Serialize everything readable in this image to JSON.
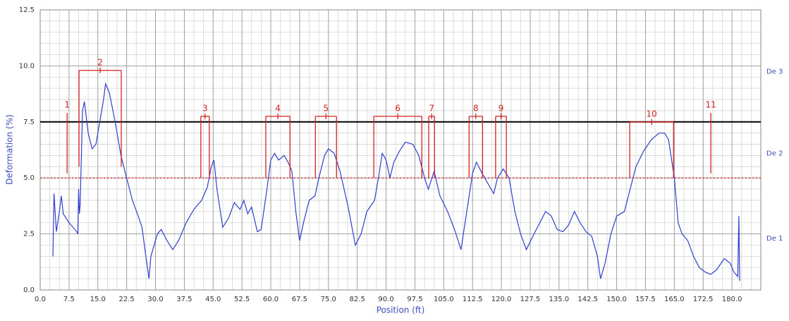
{
  "chart_data": {
    "type": "line",
    "x_label": "Position (ft)",
    "y_label": "Deformation (%)",
    "xlim": [
      0,
      187.5
    ],
    "ylim": [
      0,
      12.5
    ],
    "xticks": [
      {
        "value": 0,
        "label": "0.0"
      },
      7.5,
      {
        "value": 15,
        "label": "15.0"
      },
      22.5,
      {
        "value": 30,
        "label": "30.0"
      },
      37.5,
      {
        "value": 45,
        "label": "45.0"
      },
      52.5,
      {
        "value": 60,
        "label": "60.0"
      },
      67.5,
      {
        "value": 75,
        "label": "75.0"
      },
      82.5,
      {
        "value": 90,
        "label": "90.0"
      },
      97.5,
      {
        "value": 105,
        "label": "105.0"
      },
      112.5,
      {
        "value": 120,
        "label": "120.0"
      },
      127.5,
      {
        "value": 135,
        "label": "135.0"
      },
      142.5,
      {
        "value": 150,
        "label": "150.0"
      },
      157.5,
      {
        "value": 165,
        "label": "165.0"
      },
      172.5,
      {
        "value": 180,
        "label": "180.0"
      }
    ],
    "yticks": [
      {
        "value": 0,
        "label": "0.0"
      },
      2.5,
      {
        "value": 5,
        "label": "5.0"
      },
      7.5,
      {
        "value": 10,
        "label": "10.0"
      },
      12.5
    ],
    "grid": true,
    "minor_grid": {
      "x": 2.5,
      "y": 0.5
    },
    "color": "#2f3fcf",
    "x": [
      3.3,
      3.6,
      4.2,
      5.0,
      5.5,
      6.0,
      7.5,
      9.5,
      9.8,
      10.0,
      10.2,
      10.4,
      11.0,
      11.5,
      12.5,
      13.5,
      14.5,
      15.5,
      16.5,
      17.0,
      18.0,
      19.5,
      21.0,
      22.5,
      24.0,
      25.5,
      26.5,
      27.5,
      28.3,
      28.8,
      30.5,
      31.5,
      33,
      34.5,
      36,
      38,
      40,
      42,
      43.5,
      44.5,
      45.2,
      46,
      47.5,
      49,
      50.5,
      52,
      53,
      54,
      55,
      56.5,
      57.5,
      59,
      60,
      61,
      62,
      63.5,
      64.5,
      65.5,
      66.5,
      67.5,
      68.5,
      70,
      71.5,
      72.5,
      74,
      75,
      76.5,
      78,
      80,
      82,
      83.5,
      85,
      87,
      88,
      89,
      90,
      91,
      92,
      93.5,
      95,
      97,
      98.5,
      100,
      101,
      102.5,
      104,
      106,
      108,
      109.5,
      111,
      112.5,
      113.5,
      115,
      117,
      118,
      119,
      120.5,
      122,
      123.5,
      125,
      126.5,
      128.5,
      130,
      131.5,
      133,
      134.5,
      136,
      137.5,
      139,
      140.5,
      142,
      143.5,
      145,
      145.8,
      147,
      148.5,
      150,
      152,
      153.5,
      155,
      157,
      159,
      161,
      162.5,
      163.5,
      165,
      166,
      167,
      168.5,
      170,
      171.5,
      173,
      174.5,
      176,
      178,
      179.5,
      180.5,
      181.5,
      181.8,
      182
    ],
    "values": [
      1.5,
      4.3,
      2.6,
      3.5,
      4.2,
      3.4,
      3.0,
      2.6,
      2.5,
      4.5,
      3.4,
      3.8,
      8.0,
      8.4,
      7.0,
      6.3,
      6.5,
      7.5,
      8.5,
      9.2,
      8.8,
      7.5,
      6.0,
      5.0,
      4.0,
      3.3,
      2.8,
      1.5,
      0.5,
      1.5,
      2.5,
      2.7,
      2.2,
      1.8,
      2.2,
      3.0,
      3.6,
      4.0,
      4.6,
      5.5,
      5.8,
      4.5,
      2.8,
      3.2,
      3.9,
      3.6,
      4.0,
      3.4,
      3.7,
      2.6,
      2.7,
      4.5,
      5.8,
      6.1,
      5.8,
      6.0,
      5.7,
      5.3,
      3.5,
      2.2,
      3.0,
      4.0,
      4.2,
      5.0,
      6.0,
      6.3,
      6.1,
      5.3,
      3.8,
      2.0,
      2.5,
      3.5,
      4.0,
      5.0,
      6.1,
      5.8,
      5.0,
      5.7,
      6.2,
      6.6,
      6.5,
      6.0,
      5.0,
      4.5,
      5.3,
      4.2,
      3.5,
      2.6,
      1.8,
      3.5,
      5.2,
      5.7,
      5.2,
      4.6,
      4.3,
      5.0,
      5.4,
      5.0,
      3.5,
      2.5,
      1.8,
      2.5,
      3.0,
      3.5,
      3.3,
      2.7,
      2.6,
      2.9,
      3.5,
      3.0,
      2.6,
      2.4,
      1.5,
      0.5,
      1.2,
      2.5,
      3.3,
      3.5,
      4.5,
      5.5,
      6.2,
      6.7,
      7.0,
      7.0,
      6.7,
      5.0,
      3.0,
      2.5,
      2.2,
      1.5,
      1.0,
      0.8,
      0.7,
      0.9,
      1.4,
      1.2,
      0.8,
      0.6,
      3.3,
      0.4
    ],
    "ref_lines": [
      {
        "value": 7.5,
        "color": "#000000",
        "style": "solid"
      },
      {
        "value": 5.0,
        "color": "#e03030",
        "style": "dotted"
      }
    ],
    "right_labels": [
      {
        "text": "De 3",
        "value": 9.75
      },
      {
        "text": "De 2",
        "value": 6.1
      },
      {
        "text": "De 1",
        "value": 2.3
      }
    ],
    "marker_color": "#d42020",
    "markers": [
      {
        "label": "1",
        "start": 7.0,
        "end": 7.0,
        "top": 7.9,
        "bottom": 5.2
      },
      {
        "label": "2",
        "start": 10.1,
        "end": 21.1,
        "top": 9.8,
        "bottom": 5.5
      },
      {
        "label": "3",
        "start": 41.8,
        "end": 44.0,
        "top": 7.75,
        "bottom": 5.0
      },
      {
        "label": "4",
        "start": 58.7,
        "end": 65.0,
        "top": 7.75,
        "bottom": 5.0
      },
      {
        "label": "5",
        "start": 71.6,
        "end": 77.1,
        "top": 7.75,
        "bottom": 5.0
      },
      {
        "label": "6",
        "start": 86.8,
        "end": 99.3,
        "top": 7.75,
        "bottom": 5.0
      },
      {
        "label": "7",
        "start": 101.1,
        "end": 102.6,
        "top": 7.75,
        "bottom": 5.0
      },
      {
        "label": "8",
        "start": 111.6,
        "end": 115.1,
        "top": 7.75,
        "bottom": 5.0
      },
      {
        "label": "9",
        "start": 118.5,
        "end": 121.3,
        "top": 7.75,
        "bottom": 5.0
      },
      {
        "label": "10",
        "start": 153.4,
        "end": 164.8,
        "top": 7.5,
        "bottom": 5.0
      },
      {
        "label": "11",
        "start": 174.5,
        "end": 174.5,
        "top": 7.9,
        "bottom": 5.2
      }
    ]
  }
}
